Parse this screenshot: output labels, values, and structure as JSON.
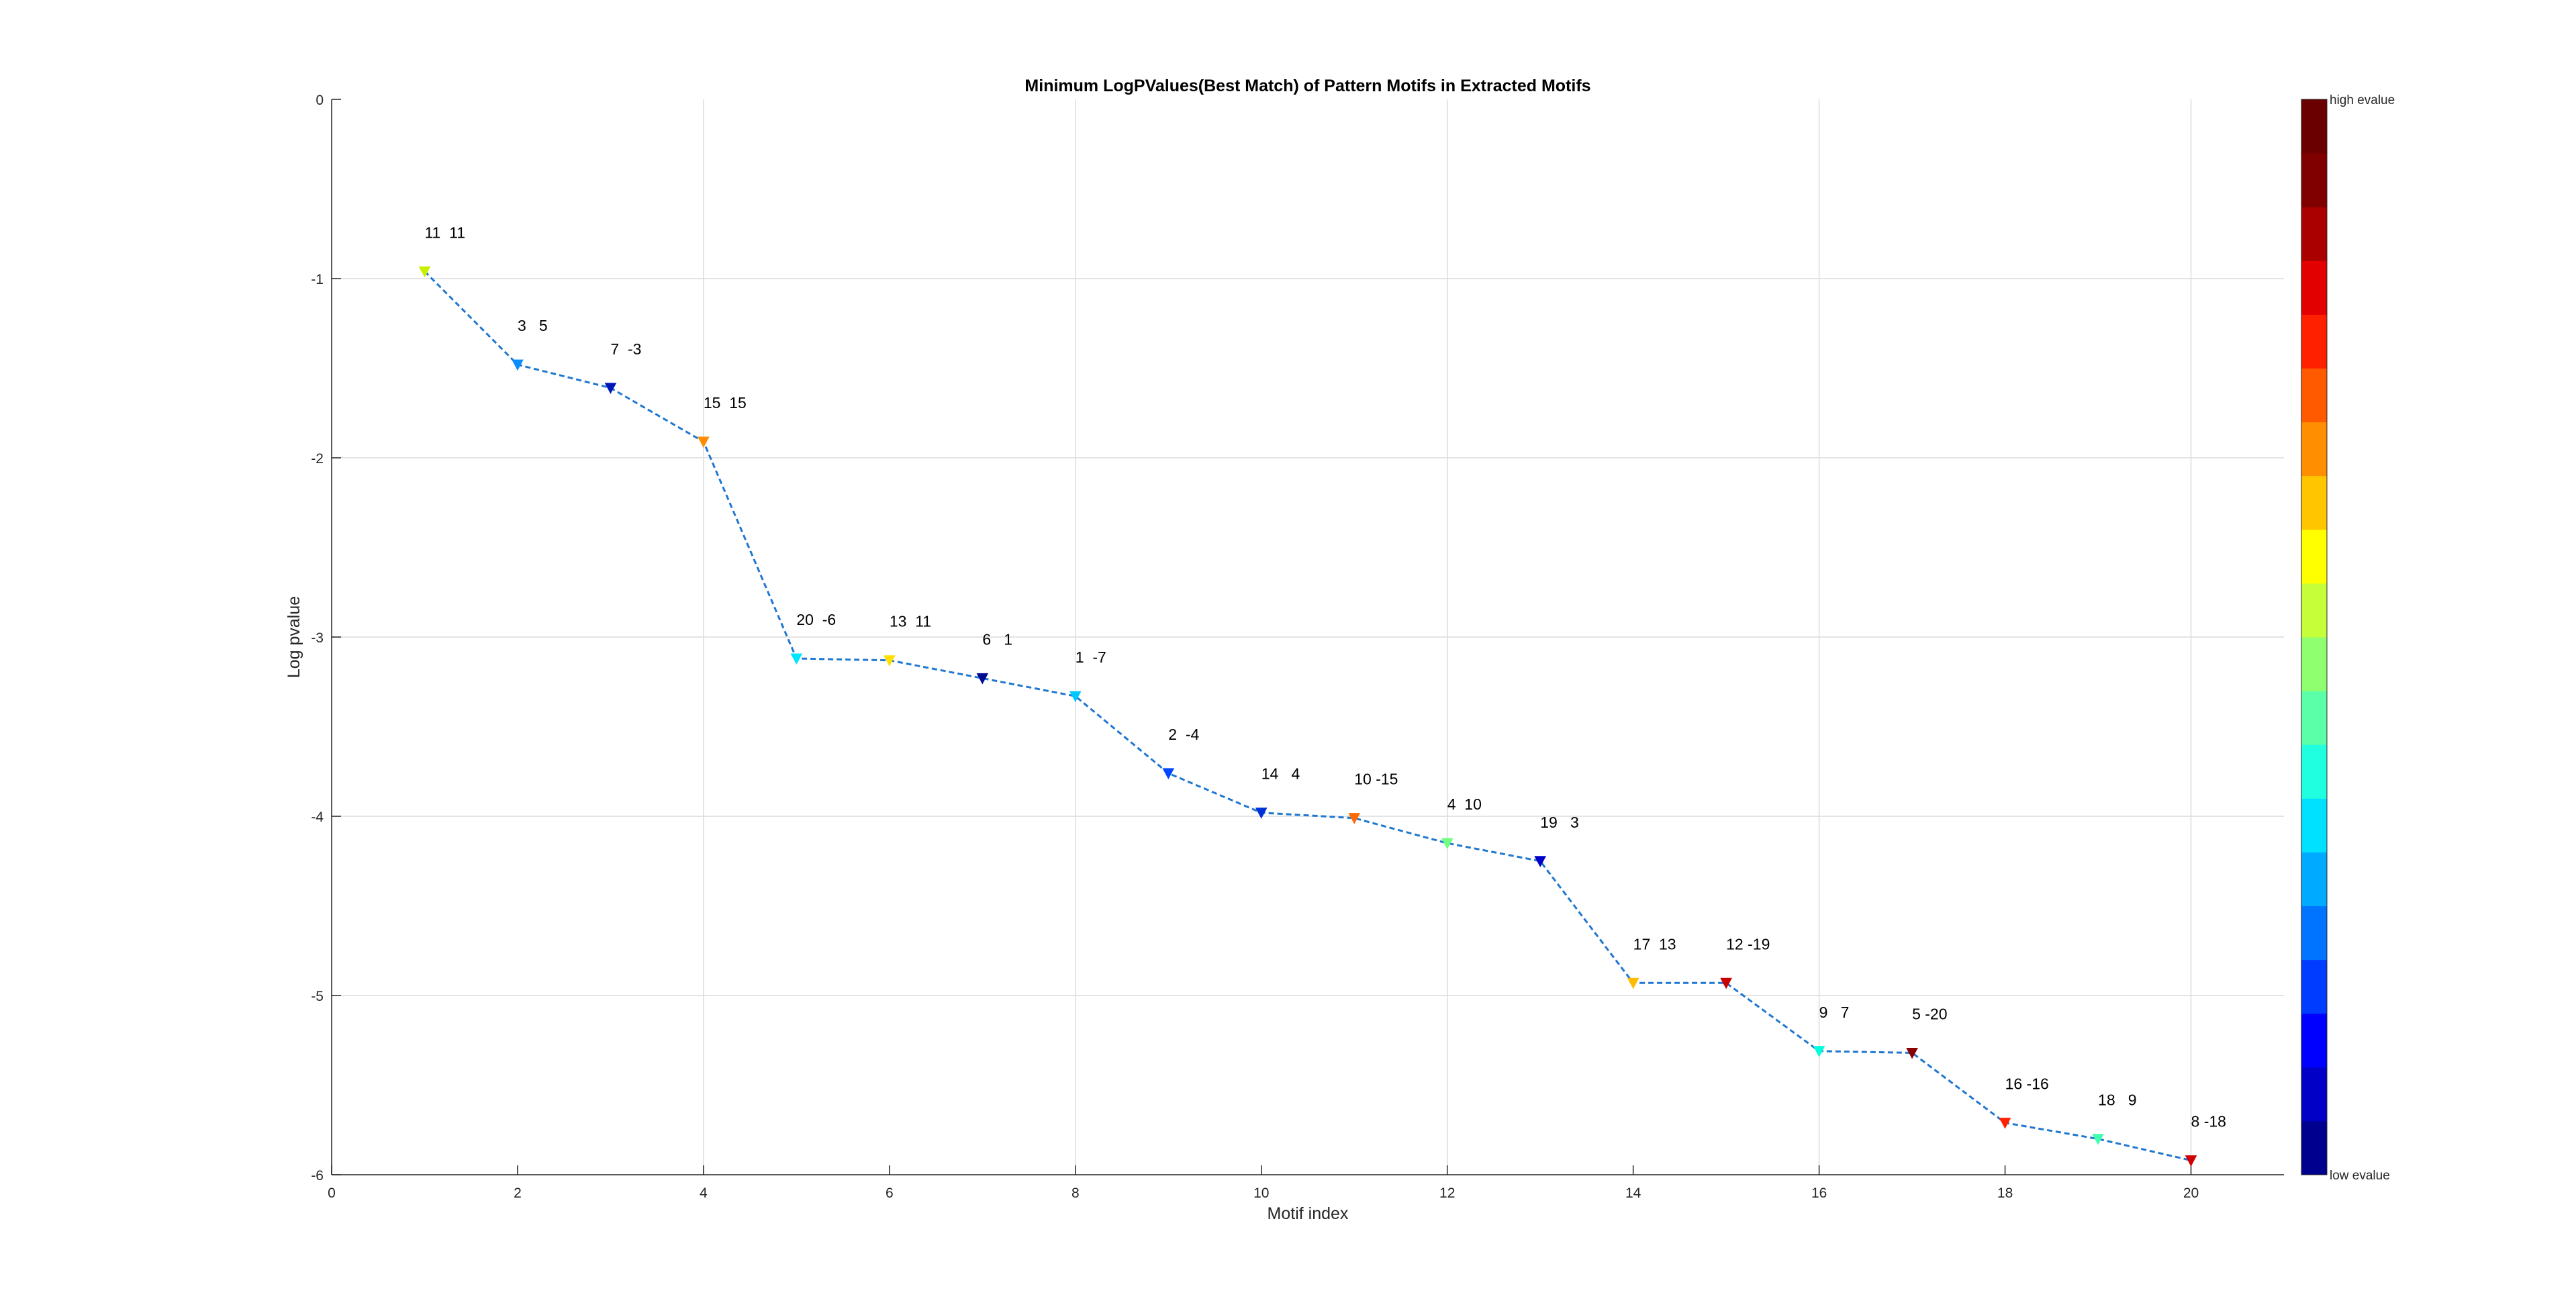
{
  "chart_data": {
    "type": "line",
    "title": "Minimum LogPValues(Best Match) of Pattern Motifs in Extracted Motifs",
    "xlabel": "Motif index",
    "ylabel": "Log pvalue",
    "xlim": [
      0,
      21
    ],
    "ylim": [
      -6,
      0
    ],
    "xticks": [
      0,
      2,
      4,
      6,
      8,
      10,
      12,
      14,
      16,
      18,
      20
    ],
    "yticks": [
      0,
      -1,
      -2,
      -3,
      -4,
      -5,
      -6
    ],
    "grid": true,
    "line_color": "#1f77d0",
    "line_style": "dashed",
    "x": [
      1,
      2,
      3,
      4,
      5,
      6,
      7,
      8,
      9,
      10,
      11,
      12,
      13,
      14,
      15,
      16,
      17,
      18,
      19,
      20
    ],
    "y": [
      -0.96,
      -1.48,
      -1.61,
      -1.91,
      -3.12,
      -3.13,
      -3.23,
      -3.33,
      -3.76,
      -3.98,
      -4.01,
      -4.15,
      -4.25,
      -4.93,
      -4.93,
      -5.31,
      -5.32,
      -5.71,
      -5.8,
      -5.92
    ],
    "labels": [
      "11  11",
      "3   5",
      "7  -3",
      "15  15",
      "20  -6",
      "13  11",
      "6   1",
      "1  -7",
      "2  -4",
      "14   4",
      "10 -15",
      "4  10",
      "19   3",
      "17  13",
      "12 -19",
      "9   7",
      "5 -20",
      "16 -16",
      "18   9",
      "8 -18"
    ],
    "marker_colors": [
      "#c8f000",
      "#0a8cff",
      "#0018b8",
      "#ff8c00",
      "#00e6ff",
      "#ffe000",
      "#000c90",
      "#00c8ff",
      "#0048ff",
      "#0030d8",
      "#ff6a00",
      "#70ff80",
      "#0000c8",
      "#ffbc00",
      "#c80000",
      "#00ffdc",
      "#880000",
      "#ff2000",
      "#40ffb0",
      "#d00000"
    ],
    "colorbar": {
      "top_label": "high evalue",
      "bottom_label": "low evalue",
      "colors": [
        "#00008f",
        "#0000c6",
        "#0000ff",
        "#003cff",
        "#0074ff",
        "#00aaff",
        "#00e0ff",
        "#20ffdf",
        "#5affa8",
        "#8fff70",
        "#c6ff39",
        "#ffff00",
        "#ffc600",
        "#ff8f00",
        "#ff5a00",
        "#ff2000",
        "#e20000",
        "#aa0000",
        "#800000",
        "#6a0000"
      ]
    }
  }
}
